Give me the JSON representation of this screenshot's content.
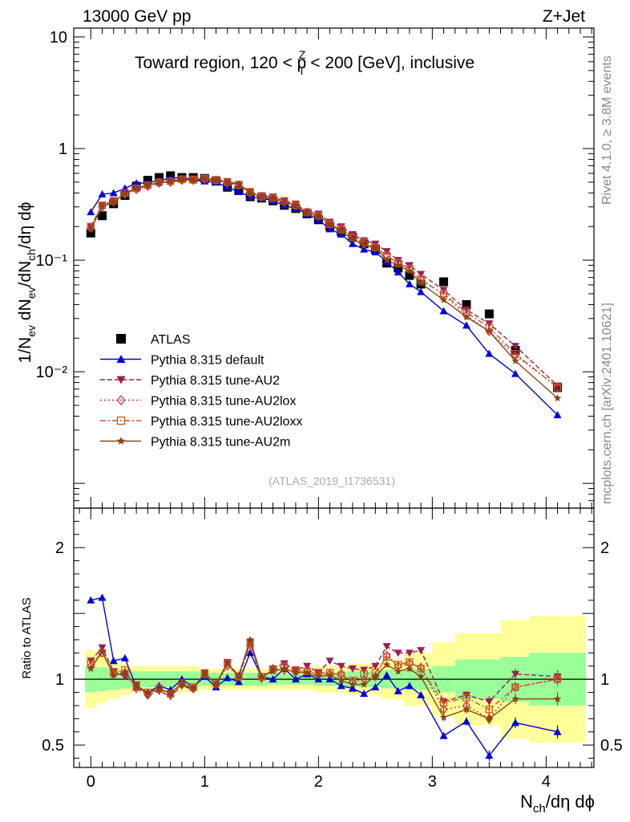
{
  "header": {
    "left_label": "13000 GeV pp",
    "right_label": "Z+Jet"
  },
  "side_labels": {
    "rivet": "Rivet 4.1.0, ≥ 3.8M events",
    "mcplots": "mcplots.cern.ch [arXiv:2401.10621]"
  },
  "chart_data": [
    {
      "type": "scatter",
      "panel": "main",
      "title": "Toward region, 120 < p",
      "title_sup": "Z",
      "title_sub": "T",
      "title_tail": " < 200 [GeV], inclusive",
      "analysis_id": "(ATLAS_2019_I1736531)",
      "ylabel_parts": [
        "1/N",
        "ev",
        " dN",
        "ev",
        "/dN",
        "ch",
        "/dη dϕ"
      ],
      "yscale": "log",
      "ylim": [
        0.0006,
        12
      ],
      "xlim": [
        -0.15,
        4.42
      ],
      "y_ticks": [
        {
          "value": 10,
          "label": "10"
        },
        {
          "value": 1,
          "label": "1"
        },
        {
          "value": 0.1,
          "label": "10⁻¹"
        },
        {
          "value": 0.01,
          "label": "10⁻²"
        }
      ],
      "x": [
        0.0,
        0.1,
        0.2,
        0.3,
        0.4,
        0.5,
        0.6,
        0.7,
        0.8,
        0.9,
        1.0,
        1.1,
        1.2,
        1.3,
        1.4,
        1.5,
        1.6,
        1.7,
        1.8,
        1.9,
        2.0,
        2.1,
        2.2,
        2.3,
        2.4,
        2.5,
        2.6,
        2.7,
        2.8,
        2.9,
        3.1,
        3.3,
        3.5,
        3.73,
        4.1
      ],
      "series": [
        {
          "name": "ATLAS",
          "color": "#000000",
          "marker": "square",
          "line": "none",
          "values": [
            0.175,
            0.25,
            0.32,
            0.38,
            0.46,
            0.52,
            0.55,
            0.57,
            0.55,
            0.55,
            0.54,
            0.51,
            0.45,
            0.42,
            0.37,
            0.36,
            0.34,
            0.31,
            0.29,
            0.26,
            0.23,
            0.2,
            0.18,
            0.16,
            0.14,
            0.125,
            0.094,
            0.085,
            0.073,
            0.061,
            0.064,
            0.04,
            0.033,
            0.0155,
            0.0072
          ]
        },
        {
          "name": "Pythia 8.315 default",
          "color": "#0000dd",
          "marker": "triangle-up",
          "line": "solid",
          "values": [
            0.27,
            0.39,
            0.4,
            0.44,
            0.49,
            0.49,
            0.52,
            0.54,
            0.55,
            0.52,
            0.51,
            0.5,
            0.45,
            0.41,
            0.37,
            0.36,
            0.34,
            0.31,
            0.29,
            0.26,
            0.23,
            0.19,
            0.17,
            0.14,
            0.125,
            0.118,
            0.097,
            0.078,
            0.061,
            0.052,
            0.035,
            0.026,
            0.0145,
            0.0096,
            0.0041
          ]
        },
        {
          "name": "Pythia 8.315 tune-AU2",
          "color": "#9b1f52",
          "marker": "triangle-down",
          "line": "dashed",
          "values": [
            0.2,
            0.31,
            0.34,
            0.39,
            0.44,
            0.46,
            0.5,
            0.5,
            0.52,
            0.53,
            0.54,
            0.53,
            0.51,
            0.48,
            0.41,
            0.38,
            0.37,
            0.34,
            0.32,
            0.27,
            0.26,
            0.22,
            0.2,
            0.17,
            0.15,
            0.14,
            0.12,
            0.1,
            0.09,
            0.075,
            0.054,
            0.036,
            0.027,
            0.017,
            0.0075
          ]
        },
        {
          "name": "Pythia 8.315 tune-AU2lox",
          "color": "#c8323c",
          "marker": "diamond-open",
          "line": "dotted",
          "values": [
            0.195,
            0.3,
            0.33,
            0.39,
            0.43,
            0.46,
            0.49,
            0.5,
            0.52,
            0.52,
            0.53,
            0.52,
            0.49,
            0.47,
            0.4,
            0.37,
            0.36,
            0.33,
            0.31,
            0.27,
            0.25,
            0.21,
            0.19,
            0.16,
            0.14,
            0.13,
            0.11,
            0.094,
            0.084,
            0.068,
            0.049,
            0.032,
            0.023,
            0.014,
            0.0073
          ]
        },
        {
          "name": "Pythia 8.315 tune-AU2loxx",
          "color": "#cc5520",
          "marker": "square-open",
          "line": "dashdot",
          "values": [
            0.2,
            0.31,
            0.34,
            0.4,
            0.44,
            0.47,
            0.5,
            0.51,
            0.53,
            0.53,
            0.54,
            0.52,
            0.5,
            0.47,
            0.41,
            0.37,
            0.36,
            0.34,
            0.31,
            0.27,
            0.25,
            0.21,
            0.19,
            0.16,
            0.145,
            0.13,
            0.11,
            0.094,
            0.084,
            0.066,
            0.05,
            0.034,
            0.025,
            0.0145,
            0.0072
          ]
        },
        {
          "name": "Pythia 8.315 tune-AU2m",
          "color": "#8b4513",
          "marker": "star",
          "line": "solid",
          "values": [
            0.19,
            0.3,
            0.33,
            0.4,
            0.44,
            0.47,
            0.49,
            0.51,
            0.53,
            0.52,
            0.53,
            0.52,
            0.5,
            0.48,
            0.4,
            0.37,
            0.35,
            0.33,
            0.31,
            0.26,
            0.25,
            0.21,
            0.18,
            0.155,
            0.135,
            0.13,
            0.1,
            0.09,
            0.08,
            0.062,
            0.044,
            0.031,
            0.023,
            0.0125,
            0.0058
          ]
        }
      ]
    },
    {
      "type": "scatter",
      "panel": "ratio",
      "ylabel": "Ratio to ATLAS",
      "xlabel_parts": [
        "N",
        "ch",
        "/dη dϕ"
      ],
      "yscale": "linear",
      "ylim": [
        0.33,
        2.3
      ],
      "xlim": [
        -0.15,
        4.42
      ],
      "y_ticks": [
        {
          "value": 0.5,
          "label": "0.5"
        },
        {
          "value": 1,
          "label": "1"
        },
        {
          "value": 2,
          "label": "2"
        }
      ],
      "x_ticks": [
        {
          "value": 0,
          "label": "0"
        },
        {
          "value": 1,
          "label": "1"
        },
        {
          "value": 2,
          "label": "2"
        },
        {
          "value": 3,
          "label": "3"
        },
        {
          "value": 4,
          "label": "4"
        }
      ],
      "uncertainty_bins": [
        {
          "xlo": -0.05,
          "xhi": 0.05,
          "stat": 0.1,
          "total": 0.22
        },
        {
          "xlo": 0.05,
          "xhi": 0.15,
          "stat": 0.09,
          "total": 0.18
        },
        {
          "xlo": 0.15,
          "xhi": 0.25,
          "stat": 0.08,
          "total": 0.15
        },
        {
          "xlo": 0.25,
          "xhi": 0.35,
          "stat": 0.07,
          "total": 0.12
        },
        {
          "xlo": 0.35,
          "xhi": 0.95,
          "stat": 0.06,
          "total": 0.1
        },
        {
          "xlo": 0.95,
          "xhi": 1.55,
          "stat": 0.05,
          "total": 0.08
        },
        {
          "xlo": 1.55,
          "xhi": 1.95,
          "stat": 0.04,
          "total": 0.08
        },
        {
          "xlo": 1.95,
          "xhi": 2.25,
          "stat": 0.05,
          "total": 0.1
        },
        {
          "xlo": 2.25,
          "xhi": 2.55,
          "stat": 0.06,
          "total": 0.12
        },
        {
          "xlo": 2.55,
          "xhi": 2.75,
          "stat": 0.07,
          "total": 0.15
        },
        {
          "xlo": 2.75,
          "xhi": 3.0,
          "stat": 0.08,
          "total": 0.2
        },
        {
          "xlo": 3.0,
          "xhi": 3.2,
          "stat": 0.1,
          "total": 0.28
        },
        {
          "xlo": 3.2,
          "xhi": 3.6,
          "stat": 0.15,
          "total": 0.35
        },
        {
          "xlo": 3.6,
          "xhi": 3.85,
          "stat": 0.17,
          "total": 0.45
        },
        {
          "xlo": 3.85,
          "xhi": 4.35,
          "stat": 0.2,
          "total": 0.48
        }
      ],
      "x": [
        0.0,
        0.1,
        0.2,
        0.3,
        0.4,
        0.5,
        0.6,
        0.7,
        0.8,
        0.9,
        1.0,
        1.1,
        1.2,
        1.3,
        1.4,
        1.5,
        1.6,
        1.7,
        1.8,
        1.9,
        2.0,
        2.1,
        2.2,
        2.3,
        2.4,
        2.5,
        2.6,
        2.7,
        2.8,
        2.9,
        3.1,
        3.3,
        3.5,
        3.73,
        4.1
      ],
      "series": [
        {
          "name": "Pythia 8.315 default",
          "color": "#0000dd",
          "marker": "triangle-up",
          "line": "solid",
          "values": [
            1.6,
            1.62,
            1.14,
            1.16,
            0.94,
            0.9,
            0.95,
            0.92,
            1.0,
            0.94,
            1.02,
            0.94,
            1.01,
            0.98,
            1.2,
            1.02,
            1.0,
            1.08,
            1.0,
            1.04,
            1.0,
            1.0,
            0.95,
            0.93,
            0.89,
            0.94,
            1.03,
            0.91,
            0.95,
            0.88,
            0.57,
            0.68,
            0.42,
            0.67,
            0.6
          ],
          "errors": [
            0.01,
            0.01,
            0.01,
            0.01,
            0.01,
            0.01,
            0.01,
            0.01,
            0.01,
            0.01,
            0.01,
            0.01,
            0.01,
            0.01,
            0.01,
            0.01,
            0.01,
            0.01,
            0.01,
            0.01,
            0.01,
            0.01,
            0.01,
            0.01,
            0.01,
            0.01,
            0.01,
            0.01,
            0.01,
            0.02,
            0.02,
            0.03,
            0.04,
            0.04,
            0.05
          ]
        },
        {
          "name": "Pythia 8.315 tune-AU2",
          "color": "#9b1f52",
          "marker": "triangle-down",
          "line": "dashed",
          "values": [
            1.14,
            1.24,
            1.06,
            1.02,
            0.96,
            0.88,
            0.91,
            0.87,
            0.95,
            0.92,
            1.05,
            0.96,
            1.13,
            1.01,
            1.28,
            1.0,
            1.08,
            1.12,
            1.07,
            1.1,
            1.05,
            1.14,
            1.1,
            1.08,
            1.07,
            1.1,
            1.25,
            1.2,
            1.2,
            1.22,
            0.83,
            0.88,
            0.83,
            1.04,
            1.02
          ],
          "errors": [
            0.01,
            0.01,
            0.01,
            0.01,
            0.01,
            0.01,
            0.01,
            0.01,
            0.01,
            0.01,
            0.01,
            0.01,
            0.01,
            0.01,
            0.01,
            0.01,
            0.01,
            0.01,
            0.01,
            0.01,
            0.01,
            0.01,
            0.01,
            0.01,
            0.01,
            0.01,
            0.01,
            0.02,
            0.02,
            0.02,
            0.03,
            0.03,
            0.04,
            0.04,
            0.05
          ]
        },
        {
          "name": "Pythia 8.315 tune-AU2lox",
          "color": "#c8323c",
          "marker": "diamond-open",
          "line": "dotted",
          "values": [
            1.1,
            1.2,
            1.04,
            1.05,
            0.93,
            0.88,
            0.93,
            0.88,
            0.96,
            0.93,
            1.04,
            0.96,
            1.1,
            1.02,
            1.26,
            1.01,
            1.08,
            1.07,
            1.06,
            1.06,
            1.04,
            1.04,
            1.04,
            0.98,
            1.0,
            1.02,
            1.18,
            1.1,
            1.12,
            1.09,
            0.77,
            0.8,
            0.7,
            0.94,
            1.0
          ],
          "errors": [
            0.01,
            0.01,
            0.01,
            0.01,
            0.01,
            0.01,
            0.01,
            0.01,
            0.01,
            0.01,
            0.01,
            0.01,
            0.01,
            0.01,
            0.01,
            0.01,
            0.01,
            0.01,
            0.01,
            0.01,
            0.01,
            0.01,
            0.01,
            0.01,
            0.01,
            0.01,
            0.01,
            0.02,
            0.02,
            0.02,
            0.03,
            0.03,
            0.04,
            0.04,
            0.05
          ]
        },
        {
          "name": "Pythia 8.315 tune-AU2loxx",
          "color": "#cc5520",
          "marker": "square-open",
          "line": "dashdot",
          "values": [
            1.12,
            1.2,
            1.05,
            1.07,
            0.95,
            0.9,
            0.93,
            0.89,
            0.97,
            0.94,
            1.04,
            0.97,
            1.12,
            1.02,
            1.27,
            1.02,
            1.07,
            1.1,
            1.07,
            1.06,
            1.05,
            1.05,
            1.03,
            0.99,
            1.04,
            1.05,
            1.17,
            1.11,
            1.13,
            1.08,
            0.82,
            0.86,
            0.77,
            0.94,
            1.0
          ],
          "errors": [
            0.01,
            0.01,
            0.01,
            0.01,
            0.01,
            0.01,
            0.01,
            0.01,
            0.01,
            0.01,
            0.01,
            0.01,
            0.01,
            0.01,
            0.01,
            0.01,
            0.01,
            0.01,
            0.01,
            0.01,
            0.01,
            0.01,
            0.01,
            0.01,
            0.01,
            0.01,
            0.01,
            0.02,
            0.02,
            0.02,
            0.03,
            0.03,
            0.04,
            0.04,
            0.05
          ]
        },
        {
          "name": "Pythia 8.315 tune-AU2m",
          "color": "#8b4513",
          "marker": "star",
          "line": "solid",
          "values": [
            1.08,
            1.21,
            1.03,
            1.05,
            0.95,
            0.9,
            0.92,
            0.9,
            0.96,
            0.93,
            1.05,
            0.96,
            1.12,
            1.03,
            1.3,
            1.02,
            1.06,
            1.08,
            1.05,
            1.05,
            1.02,
            1.03,
            0.99,
            0.96,
            0.96,
            1.02,
            1.11,
            1.06,
            1.08,
            1.02,
            0.71,
            0.77,
            0.7,
            0.85,
            0.85
          ],
          "errors": [
            0.01,
            0.01,
            0.01,
            0.01,
            0.01,
            0.01,
            0.01,
            0.01,
            0.01,
            0.01,
            0.01,
            0.01,
            0.01,
            0.01,
            0.01,
            0.01,
            0.01,
            0.01,
            0.01,
            0.01,
            0.01,
            0.01,
            0.01,
            0.01,
            0.01,
            0.01,
            0.01,
            0.02,
            0.02,
            0.02,
            0.03,
            0.03,
            0.04,
            0.04,
            0.05
          ]
        }
      ]
    }
  ]
}
